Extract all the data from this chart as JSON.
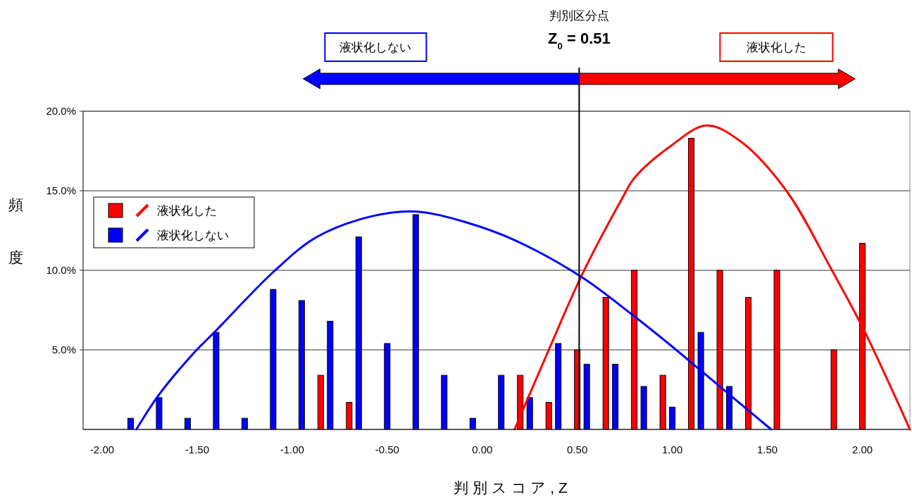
{
  "chart_data": {
    "type": "bar",
    "xlabel": "判 別 ス コ ア , Z",
    "ylabel": "頻度",
    "xlim": [
      -2.1,
      2.25
    ],
    "xticks": [
      {
        "value": -2,
        "label": "-2.00"
      },
      {
        "value": -1.5,
        "label": "-1.50"
      },
      {
        "value": -1,
        "label": "-1.00"
      },
      {
        "value": -0.5,
        "label": "-0.50"
      },
      {
        "value": 0,
        "label": "0.00"
      },
      {
        "value": 0.5,
        "label": "0.50"
      },
      {
        "value": 1,
        "label": "1.00"
      },
      {
        "value": 1.5,
        "label": "1.50"
      },
      {
        "value": 2,
        "label": "2.00"
      }
    ],
    "ylim": [
      0,
      20
    ],
    "yticks": [
      {
        "value": 5,
        "label": "5.0%"
      },
      {
        "value": 10,
        "label": "10.0%"
      },
      {
        "value": 15,
        "label": "15.0%"
      },
      {
        "value": 20,
        "label": "20.0%"
      }
    ],
    "grid": "y",
    "legend": "top left",
    "series": [
      {
        "name": "液状化した",
        "color": "#ff0000",
        "x": [
          -0.85,
          -0.7,
          0.2,
          0.35,
          0.5,
          0.65,
          0.8,
          0.95,
          1.1,
          1.25,
          1.4,
          1.55,
          1.85,
          2.0
        ],
        "values": [
          3.4,
          1.7,
          3.4,
          1.7,
          5.0,
          8.3,
          10.0,
          3.4,
          18.3,
          10.0,
          8.3,
          10.0,
          5.0,
          11.7
        ]
      },
      {
        "name": "液状化しない",
        "color": "#0000ff",
        "x": [
          -1.85,
          -1.7,
          -1.55,
          -1.4,
          -1.25,
          -1.1,
          -0.95,
          -0.8,
          -0.65,
          -0.5,
          -0.35,
          -0.2,
          -0.05,
          0.1,
          0.25,
          0.4,
          0.55,
          0.7,
          0.85,
          1.0,
          1.15,
          1.3
        ],
        "values": [
          0.7,
          2.0,
          0.7,
          6.1,
          0.7,
          8.8,
          8.1,
          6.8,
          12.1,
          5.4,
          13.5,
          3.4,
          0.7,
          3.4,
          2.0,
          5.4,
          4.1,
          4.1,
          2.7,
          1.4,
          6.1,
          2.7
        ]
      },
      {
        "type": "line",
        "color": "#ff0000",
        "x": [
          0.17,
          0.35,
          0.52,
          0.74,
          0.8,
          0.99,
          1.18,
          1.36,
          1.6,
          1.84,
          2.01,
          2.25
        ],
        "values": [
          0,
          5.0,
          9.6,
          14.6,
          15.8,
          17.8,
          19.1,
          18.1,
          15.0,
          10.0,
          6.2,
          0
        ]
      },
      {
        "type": "line",
        "color": "#0000ff",
        "x": [
          -1.82,
          -1.7,
          -1.51,
          -1.41,
          -1.09,
          -0.87,
          -0.58,
          -0.35,
          -0.08,
          0.17,
          0.52,
          0.79,
          0.99,
          1.15,
          1.52
        ],
        "values": [
          0,
          2.2,
          4.9,
          6.1,
          10.0,
          12.1,
          13.4,
          13.7,
          13.0,
          11.9,
          9.6,
          7.2,
          5.3,
          3.7,
          0
        ]
      }
    ],
    "ref_lines": [
      {
        "axis": "x",
        "value": 0.51,
        "label": "判別区分点\nZ$_{0}$ = 0.51",
        "color": "#000000"
      }
    ],
    "annotations": [
      "液状化しない",
      "液状化した"
    ]
  }
}
